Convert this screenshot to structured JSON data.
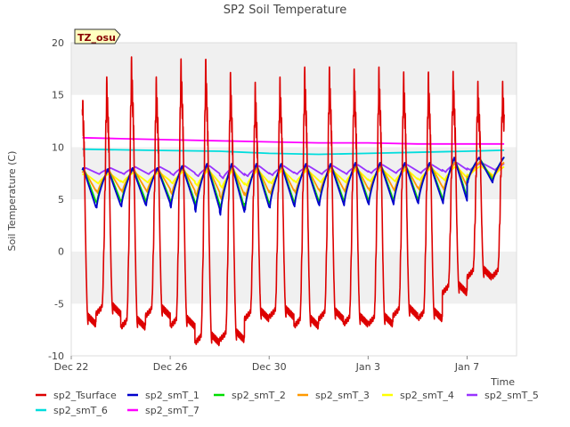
{
  "chart_data": {
    "type": "line",
    "title": "SP2 Soil Temperature",
    "xlabel": "Time",
    "ylabel": "Soil Temperature (C)",
    "annotation": "TZ_osu",
    "xlim": [
      0,
      18
    ],
    "ylim": [
      -10,
      20
    ],
    "yticks": [
      -10,
      -5,
      0,
      5,
      10,
      15,
      20
    ],
    "xticks": [
      {
        "day": 0,
        "label": "Dec 22"
      },
      {
        "day": 4,
        "label": "Dec 26"
      },
      {
        "day": 8,
        "label": "Dec 30"
      },
      {
        "day": 12,
        "label": "Jan 3"
      },
      {
        "day": 16,
        "label": "Jan 7"
      }
    ],
    "grid": "horizontal bands",
    "legend_position": "bottom",
    "x_unit": "days since Dec 22 00:00",
    "series": [
      {
        "name": "sp2_Tsurface",
        "color": "#dd0000",
        "min": [
          -7.0,
          -6.0,
          -7.3,
          -6.2,
          -7.2,
          -8.8,
          -8.5,
          -6.5,
          -6.3,
          -7.2,
          -6.5,
          -7.0,
          -7.0,
          -6.2,
          -6.5,
          -4.0,
          -2.5
        ],
        "max": [
          15.8,
          16.0,
          18.0,
          16.0,
          17.8,
          17.8,
          16.5,
          15.5,
          16.0,
          17.0,
          17.0,
          16.8,
          17.0,
          16.5,
          16.5,
          16.5,
          15.5
        ]
      },
      {
        "name": "sp2_smT_1",
        "color": "#0000cc",
        "min": [
          4.0,
          4.2,
          4.3,
          4.4,
          4.2,
          3.8,
          3.5,
          4.0,
          4.2,
          4.3,
          4.4,
          4.4,
          4.5,
          4.5,
          4.6,
          4.6,
          6.6
        ],
        "max": [
          8.0,
          7.9,
          8.0,
          8.0,
          8.2,
          8.4,
          8.4,
          8.4,
          8.4,
          8.4,
          8.4,
          8.5,
          8.5,
          8.5,
          8.5,
          9.0,
          9.0
        ]
      },
      {
        "name": "sp2_smT_2",
        "color": "#00dd00",
        "min": [
          4.5,
          4.6,
          4.7,
          4.7,
          4.5,
          4.2,
          3.9,
          4.3,
          4.5,
          4.6,
          4.7,
          4.7,
          4.8,
          4.8,
          4.9,
          4.9,
          6.8
        ],
        "max": [
          8.0,
          7.9,
          8.0,
          8.0,
          8.2,
          8.4,
          8.4,
          8.4,
          8.4,
          8.4,
          8.4,
          8.5,
          8.5,
          8.5,
          8.5,
          9.0,
          9.0
        ]
      },
      {
        "name": "sp2_smT_3",
        "color": "#ff9900",
        "min": [
          5.5,
          5.6,
          5.7,
          5.7,
          5.5,
          5.3,
          5.0,
          5.3,
          5.5,
          5.6,
          5.7,
          5.7,
          5.8,
          5.8,
          5.9,
          5.9,
          7.0
        ],
        "max": [
          7.8,
          7.8,
          7.9,
          7.9,
          8.0,
          8.1,
          8.1,
          8.1,
          8.1,
          8.1,
          8.1,
          8.2,
          8.2,
          8.2,
          8.3,
          8.6,
          8.6
        ]
      },
      {
        "name": "sp2_smT_4",
        "color": "#ffff00",
        "min": [
          6.5,
          6.5,
          6.6,
          6.6,
          6.5,
          6.3,
          6.1,
          6.3,
          6.5,
          6.6,
          6.6,
          6.6,
          6.7,
          6.7,
          6.8,
          6.8,
          7.2
        ],
        "max": [
          7.5,
          7.5,
          7.6,
          7.6,
          7.7,
          7.8,
          7.8,
          7.8,
          7.8,
          7.8,
          7.8,
          7.9,
          7.9,
          7.9,
          8.0,
          8.2,
          8.2
        ]
      },
      {
        "name": "sp2_smT_5",
        "color": "#9933ff",
        "min": [
          7.4,
          7.4,
          7.4,
          7.4,
          7.3,
          7.2,
          7.0,
          7.2,
          7.3,
          7.4,
          7.4,
          7.4,
          7.5,
          7.5,
          7.5,
          7.6,
          7.8
        ],
        "max": [
          8.0,
          8.0,
          8.1,
          8.1,
          8.2,
          8.2,
          8.2,
          8.2,
          8.2,
          8.2,
          8.2,
          8.3,
          8.3,
          8.3,
          8.3,
          8.5,
          8.5
        ]
      },
      {
        "name": "sp2_smT_6",
        "color": "#00dddd",
        "points": [
          [
            0,
            9.8
          ],
          [
            3,
            9.7
          ],
          [
            6,
            9.6
          ],
          [
            8,
            9.4
          ],
          [
            10,
            9.3
          ],
          [
            12,
            9.4
          ],
          [
            14,
            9.5
          ],
          [
            16,
            9.6
          ],
          [
            17.5,
            9.7
          ]
        ]
      },
      {
        "name": "sp2_smT_7",
        "color": "#ff00ff",
        "points": [
          [
            0,
            10.9
          ],
          [
            2,
            10.8
          ],
          [
            4,
            10.7
          ],
          [
            6,
            10.6
          ],
          [
            8,
            10.5
          ],
          [
            10,
            10.4
          ],
          [
            12,
            10.4
          ],
          [
            14,
            10.3
          ],
          [
            16,
            10.3
          ],
          [
            17.5,
            10.3
          ]
        ]
      }
    ]
  }
}
